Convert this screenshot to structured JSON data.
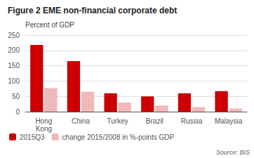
{
  "chart_data": {
    "type": "bar",
    "title": "Figure 2 EME non-financial corporate debt",
    "ylabel": "Percent of GDP",
    "annotations": [
      "Source: BIS"
    ],
    "categories": [
      "Hong\nKong",
      "China",
      "Turkey",
      "Brazil",
      "Russia",
      "Malaysia"
    ],
    "series": [
      {
        "name": "2015Q3",
        "color": "#cc0000",
        "values": [
          218,
          165,
          60,
          50,
          60,
          67
        ]
      },
      {
        "name": "change 2015/2008 in %-points GDP",
        "color": "#f0b8b8",
        "values": [
          77,
          65,
          30,
          20,
          15,
          10
        ]
      }
    ],
    "ylim": [
      0,
      250
    ],
    "yticks": [
      0,
      50,
      100,
      150,
      200,
      250
    ],
    "grid": true,
    "legend": "bottom"
  }
}
